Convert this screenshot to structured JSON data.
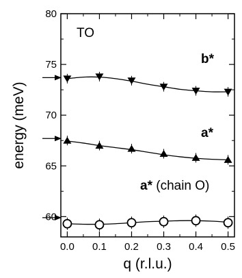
{
  "chart_data": {
    "type": "scatter",
    "title": "",
    "xlabel": "q (r.l.u.)",
    "ylabel": "energy (meV)",
    "xlim": [
      -0.02,
      0.52
    ],
    "ylim": [
      58,
      80
    ],
    "x_ticks": [
      "0.0",
      "0.1",
      "0.2",
      "0.3",
      "0.4",
      "0.5"
    ],
    "y_ticks": [
      "60",
      "65",
      "70",
      "75",
      "80"
    ],
    "grid": false,
    "legend": "none",
    "annotations": [
      {
        "text": "TO",
        "style": "normal"
      },
      {
        "text": "b*",
        "style": "bold"
      },
      {
        "text": "a*",
        "style": "bold"
      },
      {
        "text": "a*",
        "style": "bold",
        "suffix": " (chain O)"
      }
    ],
    "series": [
      {
        "marker": "triangle-down-filled",
        "x": [
          0.0,
          0.1,
          0.2,
          0.3,
          0.4,
          0.5
        ],
        "y": [
          73.6,
          73.8,
          73.4,
          72.8,
          72.4,
          72.3
        ],
        "fit": [
          [
            0.0,
            73.6
          ],
          [
            0.05,
            73.75
          ],
          [
            0.1,
            73.75
          ],
          [
            0.15,
            73.6
          ],
          [
            0.2,
            73.35
          ],
          [
            0.25,
            73.05
          ],
          [
            0.3,
            72.8
          ],
          [
            0.35,
            72.55
          ],
          [
            0.4,
            72.4
          ],
          [
            0.45,
            72.3
          ],
          [
            0.5,
            72.3
          ]
        ],
        "arrow_y": 73.7
      },
      {
        "marker": "triangle-up-filled",
        "x": [
          0.0,
          0.1,
          0.2,
          0.3,
          0.4,
          0.5
        ],
        "y": [
          67.5,
          67.0,
          66.7,
          66.2,
          65.8,
          65.6
        ],
        "fit": [
          [
            0.0,
            67.45
          ],
          [
            0.05,
            67.25
          ],
          [
            0.1,
            67.0
          ],
          [
            0.15,
            66.8
          ],
          [
            0.2,
            66.6
          ],
          [
            0.25,
            66.35
          ],
          [
            0.3,
            66.1
          ],
          [
            0.35,
            65.9
          ],
          [
            0.4,
            65.75
          ],
          [
            0.45,
            65.65
          ],
          [
            0.5,
            65.6
          ]
        ],
        "arrow_y": 67.7
      },
      {
        "marker": "circle-open",
        "x": [
          0.0,
          0.1,
          0.2,
          0.3,
          0.4,
          0.5
        ],
        "y": [
          59.3,
          59.2,
          59.4,
          59.5,
          59.6,
          59.4
        ],
        "fit": [
          [
            0.0,
            59.3
          ],
          [
            0.05,
            59.25
          ],
          [
            0.1,
            59.25
          ],
          [
            0.15,
            59.3
          ],
          [
            0.2,
            59.4
          ],
          [
            0.25,
            59.5
          ],
          [
            0.3,
            59.55
          ],
          [
            0.35,
            59.6
          ],
          [
            0.4,
            59.6
          ],
          [
            0.45,
            59.55
          ],
          [
            0.5,
            59.45
          ]
        ],
        "arrow_y": 59.9
      }
    ]
  }
}
